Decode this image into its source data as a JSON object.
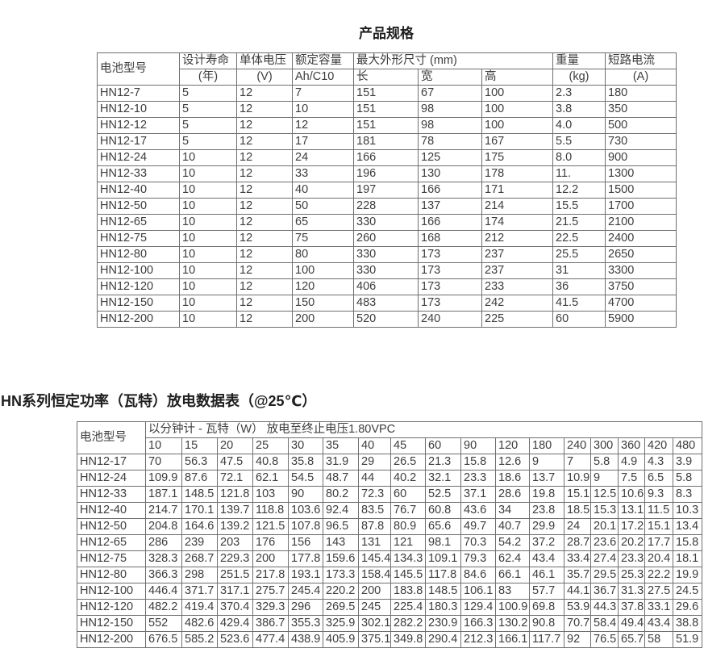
{
  "table1": {
    "title": "产品规格",
    "headers": {
      "model": "电池型号",
      "design_life": "设计寿命",
      "design_life_unit": "(年)",
      "cell_voltage": "单体电压",
      "cell_voltage_unit": "(V)",
      "rated_capacity": "额定容量",
      "rated_capacity_unit": "Ah/C10",
      "max_dimensions": "最大外形尺寸 (mm)",
      "length": "长",
      "width": "宽",
      "height": "高",
      "weight": "重量",
      "weight_unit": "(kg)",
      "short_circuit_current": "短路电流",
      "short_circuit_unit": "(A)"
    },
    "rows": [
      [
        "HN12-7",
        "5",
        "12",
        "7",
        "151",
        "67",
        "100",
        "2.3",
        "180"
      ],
      [
        "HN12-10",
        "5",
        "12",
        "10",
        "151",
        "98",
        "100",
        "3.8",
        "350"
      ],
      [
        "HN12-12",
        "5",
        "12",
        "12",
        "151",
        "98",
        "100",
        "4.0",
        "500"
      ],
      [
        "HN12-17",
        "5",
        "12",
        "17",
        "181",
        "78",
        "167",
        "5.5",
        "730"
      ],
      [
        "HN12-24",
        "10",
        "12",
        "24",
        "166",
        "125",
        "175",
        "8.0",
        "900"
      ],
      [
        "HN12-33",
        "10",
        "12",
        "33",
        "196",
        "130",
        "178",
        "11.",
        "1300"
      ],
      [
        "HN12-40",
        "10",
        "12",
        "40",
        "197",
        "166",
        "171",
        "12.2",
        "1500"
      ],
      [
        "HN12-50",
        "10",
        "12",
        "50",
        "228",
        "137",
        "214",
        "15.5",
        "1700"
      ],
      [
        "HN12-65",
        "10",
        "12",
        "65",
        "330",
        "166",
        "174",
        "21.5",
        "2100"
      ],
      [
        "HN12-75",
        "10",
        "12",
        "75",
        "260",
        "168",
        "212",
        "22.5",
        "2400"
      ],
      [
        "HN12-80",
        "10",
        "12",
        "80",
        "330",
        "173",
        "237",
        "25.5",
        "2650"
      ],
      [
        "HN12-100",
        "10",
        "12",
        "100",
        "330",
        "173",
        "237",
        "31",
        "3300"
      ],
      [
        "HN12-120",
        "10",
        "12",
        "120",
        "406",
        "173",
        "233",
        "36",
        "3750"
      ],
      [
        "HN12-150",
        "10",
        "12",
        "150",
        "483",
        "173",
        "242",
        "41.5",
        "4700"
      ],
      [
        "HN12-200",
        "10",
        "12",
        "200",
        "520",
        "240",
        "225",
        "60",
        "5900"
      ]
    ]
  },
  "table2": {
    "title": "HN系列恒定功率（瓦特）放电数据表（@25℃）",
    "model_header": "电池型号",
    "span_header": "以分钟计 - 瓦特（W）  放电至终止电压1.80VPC",
    "time_cols": [
      "10",
      "15",
      "20",
      "25",
      "30",
      "35",
      "40",
      "45",
      "60",
      "90",
      "120",
      "180",
      "240",
      "300",
      "360",
      "420",
      "480"
    ],
    "rows": [
      [
        "HN12-17",
        "70",
        "56.3",
        "47.5",
        "40.8",
        "35.8",
        "31.9",
        "29",
        "26.5",
        "21.3",
        "15.8",
        "12.6",
        "9",
        "7",
        "5.8",
        "4.9",
        "4.3",
        "3.9"
      ],
      [
        "HN12-24",
        "109.9",
        "87.6",
        "72.1",
        "62.1",
        "54.5",
        "48.7",
        "44",
        "40.2",
        "32.1",
        "23.3",
        "18.6",
        "13.7",
        "10.9",
        "9",
        "7.5",
        "6.5",
        "5.8"
      ],
      [
        "HN12-33",
        "187.1",
        "148.5",
        "121.8",
        "103",
        "90",
        "80.2",
        "72.3",
        "60",
        "52.5",
        "37.1",
        "28.6",
        "19.8",
        "15.1",
        "12.5",
        "10.6",
        "9.3",
        "8.3"
      ],
      [
        "HN12-40",
        "214.7",
        "170.1",
        "139.7",
        "118.8",
        "103.6",
        "92.4",
        "83.5",
        "76.7",
        "60.8",
        "43.6",
        "34",
        "23.8",
        "18.5",
        "15.3",
        "13.1",
        "11.5",
        "10.3"
      ],
      [
        "HN12-50",
        "204.8",
        "164.6",
        "139.2",
        "121.5",
        "107.8",
        "96.5",
        "87.8",
        "80.9",
        "65.6",
        "49.7",
        "40.7",
        "29.9",
        "24",
        "20.1",
        "17.2",
        "15.1",
        "13.4"
      ],
      [
        "HN12-65",
        "286",
        "239",
        "203",
        "176",
        "156",
        "143",
        "131",
        "121",
        "98.1",
        "70.3",
        "54.2",
        "37.2",
        "28.7",
        "23.6",
        "20.2",
        "17.7",
        "15.8"
      ],
      [
        "HN12-75",
        "328.3",
        "268.7",
        "229.3",
        "200",
        "177.8",
        "159.6",
        "145.4",
        "134.3",
        "109.1",
        "79.3",
        "62.4",
        "43.4",
        "33.4",
        "27.4",
        "23.3",
        "20.4",
        "18.1"
      ],
      [
        "HN12-80",
        "366.3",
        "298",
        "251.5",
        "217.8",
        "193.1",
        "173.3",
        "158.4",
        "145.5",
        "117.8",
        "84.6",
        "66.1",
        "46.1",
        "35.7",
        "29.5",
        "25.3",
        "22.2",
        "19.9"
      ],
      [
        "HN12-100",
        "446.4",
        "371.7",
        "317.1",
        "275.7",
        "245.4",
        "220.2",
        "200",
        "183.8",
        "148.5",
        "106.1",
        "83",
        "57.7",
        "44.1",
        "36.7",
        "31.3",
        "27.5",
        "24.5"
      ],
      [
        "HN12-120",
        "482.2",
        "419.4",
        "370.4",
        "329.3",
        "296",
        "269.5",
        "245",
        "225.4",
        "180.3",
        "129.4",
        "100.9",
        "69.8",
        "53.9",
        "44.3",
        "37.8",
        "33.1",
        "29.6"
      ],
      [
        "HN12-150",
        "552",
        "482.6",
        "429.4",
        "386.7",
        "355.3",
        "325.9",
        "302.1",
        "282.2",
        "230.9",
        "166.3",
        "130.2",
        "90.8",
        "70.7",
        "58.4",
        "49.4",
        "43.4",
        "38.8"
      ],
      [
        "HN12-200",
        "676.5",
        "585.2",
        "523.6",
        "477.4",
        "438.9",
        "405.9",
        "375.1",
        "349.8",
        "290.4",
        "212.3",
        "166.1",
        "117.7",
        "92",
        "76.5",
        "65.7",
        "58",
        "51.9"
      ]
    ]
  }
}
